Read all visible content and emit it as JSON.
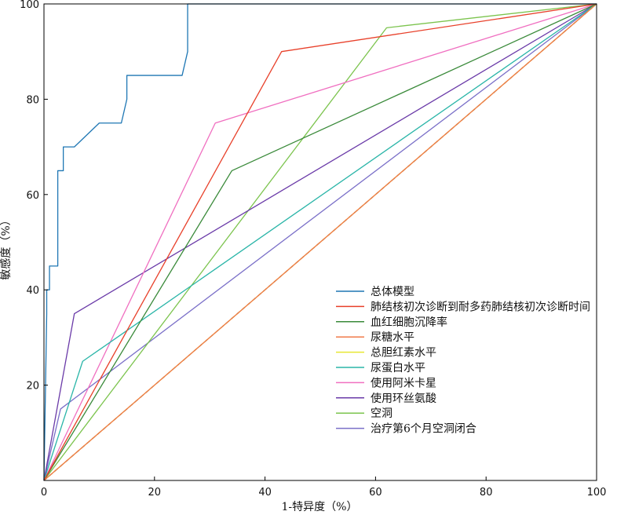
{
  "chart_data": {
    "type": "line",
    "title": "",
    "xlabel": "1-特异度（%）",
    "ylabel": "敏感度（%）",
    "xlim": [
      0,
      100
    ],
    "ylim": [
      0,
      100
    ],
    "xticks": [
      0,
      20,
      40,
      60,
      80,
      100
    ],
    "yticks": [
      20,
      40,
      60,
      80,
      100
    ],
    "grid": false,
    "legend_position": "bottom-right",
    "reference_line": {
      "style": "dashed",
      "color": "#000000",
      "points": [
        [
          0,
          0
        ],
        [
          100,
          100
        ]
      ]
    },
    "series": [
      {
        "name": "总体模型",
        "color": "#1f77b4",
        "points": [
          [
            0,
            0
          ],
          [
            0.5,
            35
          ],
          [
            0.5,
            40
          ],
          [
            1,
            40
          ],
          [
            1,
            45
          ],
          [
            2.5,
            45
          ],
          [
            2.5,
            65
          ],
          [
            3.5,
            65
          ],
          [
            3.5,
            70
          ],
          [
            5.5,
            70
          ],
          [
            10,
            75
          ],
          [
            14,
            75
          ],
          [
            15,
            80
          ],
          [
            15,
            85
          ],
          [
            25,
            85
          ],
          [
            26,
            90
          ],
          [
            26,
            100
          ],
          [
            100,
            100
          ]
        ]
      },
      {
        "name": "肺结核初次诊断到耐多药肺结核初次诊断时间",
        "color": "#e8402a",
        "points": [
          [
            0,
            0
          ],
          [
            43,
            90
          ],
          [
            100,
            100
          ]
        ]
      },
      {
        "name": "血红细胞沉降率",
        "color": "#3a8a3a",
        "points": [
          [
            0,
            0
          ],
          [
            34,
            65
          ],
          [
            100,
            100
          ]
        ]
      },
      {
        "name": "尿糖水平",
        "color": "#f07a4a",
        "points": [
          [
            0,
            0
          ],
          [
            100,
            100
          ]
        ]
      },
      {
        "name": "总胆红素水平",
        "color": "#e6e633",
        "points": [
          [
            0,
            0
          ],
          [
            100,
            100
          ]
        ]
      },
      {
        "name": "尿蛋白水平",
        "color": "#2ab5a8",
        "points": [
          [
            0,
            0
          ],
          [
            7,
            25
          ],
          [
            100,
            100
          ]
        ]
      },
      {
        "name": "使用阿米卡星",
        "color": "#f06fc0",
        "points": [
          [
            0,
            0
          ],
          [
            31,
            75
          ],
          [
            100,
            100
          ]
        ]
      },
      {
        "name": "使用环丝氨酸",
        "color": "#6a3aa8",
        "points": [
          [
            0,
            0
          ],
          [
            5.5,
            35
          ],
          [
            100,
            100
          ]
        ]
      },
      {
        "name": "空洞",
        "color": "#7cc44e",
        "points": [
          [
            0,
            0
          ],
          [
            62,
            95
          ],
          [
            100,
            100
          ]
        ]
      },
      {
        "name": "治疗第6个月空洞闭合",
        "color": "#7a6fc8",
        "points": [
          [
            0,
            0
          ],
          [
            3,
            15
          ],
          [
            100,
            100
          ]
        ]
      }
    ]
  }
}
